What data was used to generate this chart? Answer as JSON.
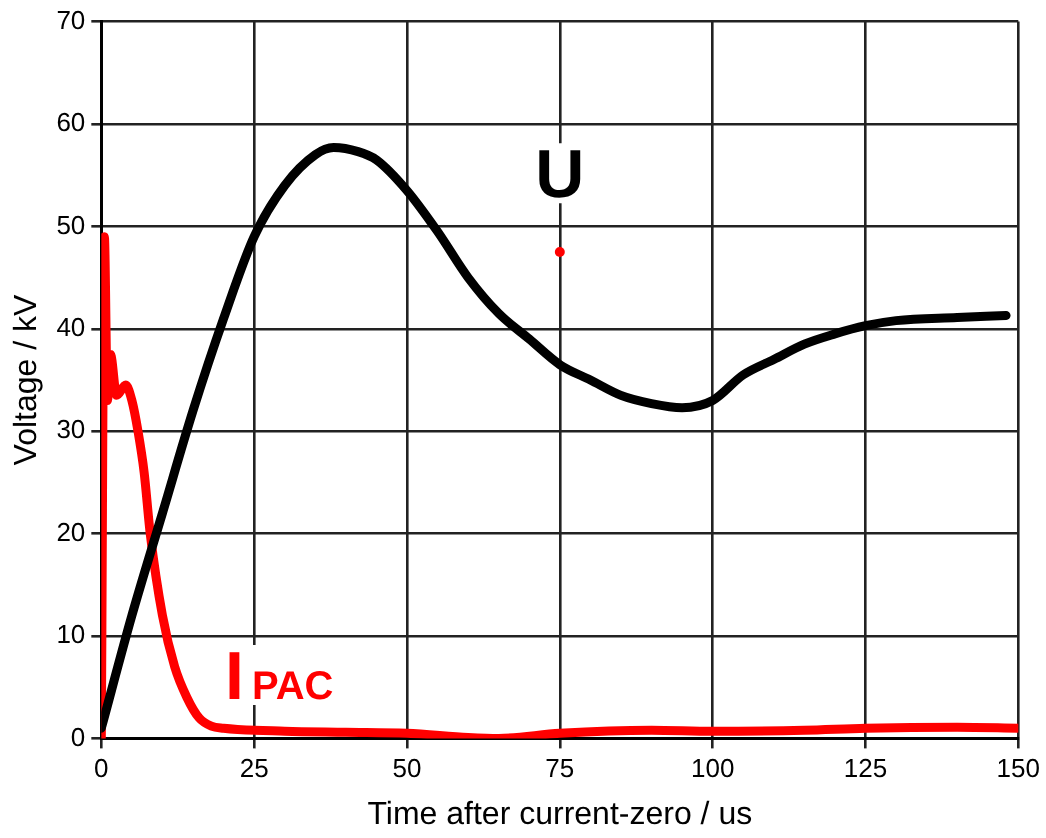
{
  "chart_data": {
    "type": "line",
    "xlabel": "Time after current-zero / us",
    "ylabel": "Voltage / kV",
    "xlim": [
      0,
      150
    ],
    "xticks": [
      0,
      25,
      50,
      75,
      100,
      125,
      150
    ],
    "ylim": [
      0,
      70
    ],
    "yticks": [
      0,
      10,
      20,
      30,
      40,
      50,
      60,
      70
    ],
    "grid": true,
    "legend": false,
    "marker": "none",
    "line_style": "solid",
    "series": [
      {
        "name": "U",
        "color": "#000000",
        "x": [
          0,
          5,
          10,
          15,
          20,
          25,
          30,
          35,
          38,
          42,
          45,
          50,
          55,
          60,
          65,
          70,
          75,
          80,
          85,
          90,
          95,
          100,
          105,
          110,
          115,
          120,
          125,
          130,
          140,
          148
        ],
        "values": [
          1,
          12,
          22,
          32,
          41,
          49,
          54,
          57,
          57.7,
          57.3,
          56.5,
          53.5,
          49.5,
          45,
          41.5,
          39,
          36.5,
          35,
          33.5,
          32.7,
          32.3,
          33,
          35.5,
          37,
          38.5,
          39.5,
          40.3,
          40.8,
          41.1,
          41.3
        ]
      },
      {
        "name": "I$_{PAC}$",
        "color": "#ff0000",
        "x": [
          0,
          0.5,
          1,
          1.5,
          2.5,
          4,
          5,
          6,
          7,
          8,
          10,
          12,
          14,
          16,
          18,
          20,
          30,
          40,
          50,
          60,
          65,
          75,
          90,
          100,
          115,
          125,
          140,
          150
        ],
        "values": [
          0,
          49,
          33,
          37.5,
          33.5,
          34.5,
          33,
          30,
          26,
          20,
          12,
          7,
          4,
          2,
          1.2,
          1,
          0.7,
          0.6,
          0.5,
          0.1,
          0,
          0.5,
          0.8,
          0.7,
          0.8,
          1,
          1.1,
          1
        ]
      },
      {
        "type": "scatter",
        "color": "#ff0000",
        "x": [
          75
        ],
        "values": [
          47.5
        ],
        "marker": "circle"
      }
    ]
  }
}
